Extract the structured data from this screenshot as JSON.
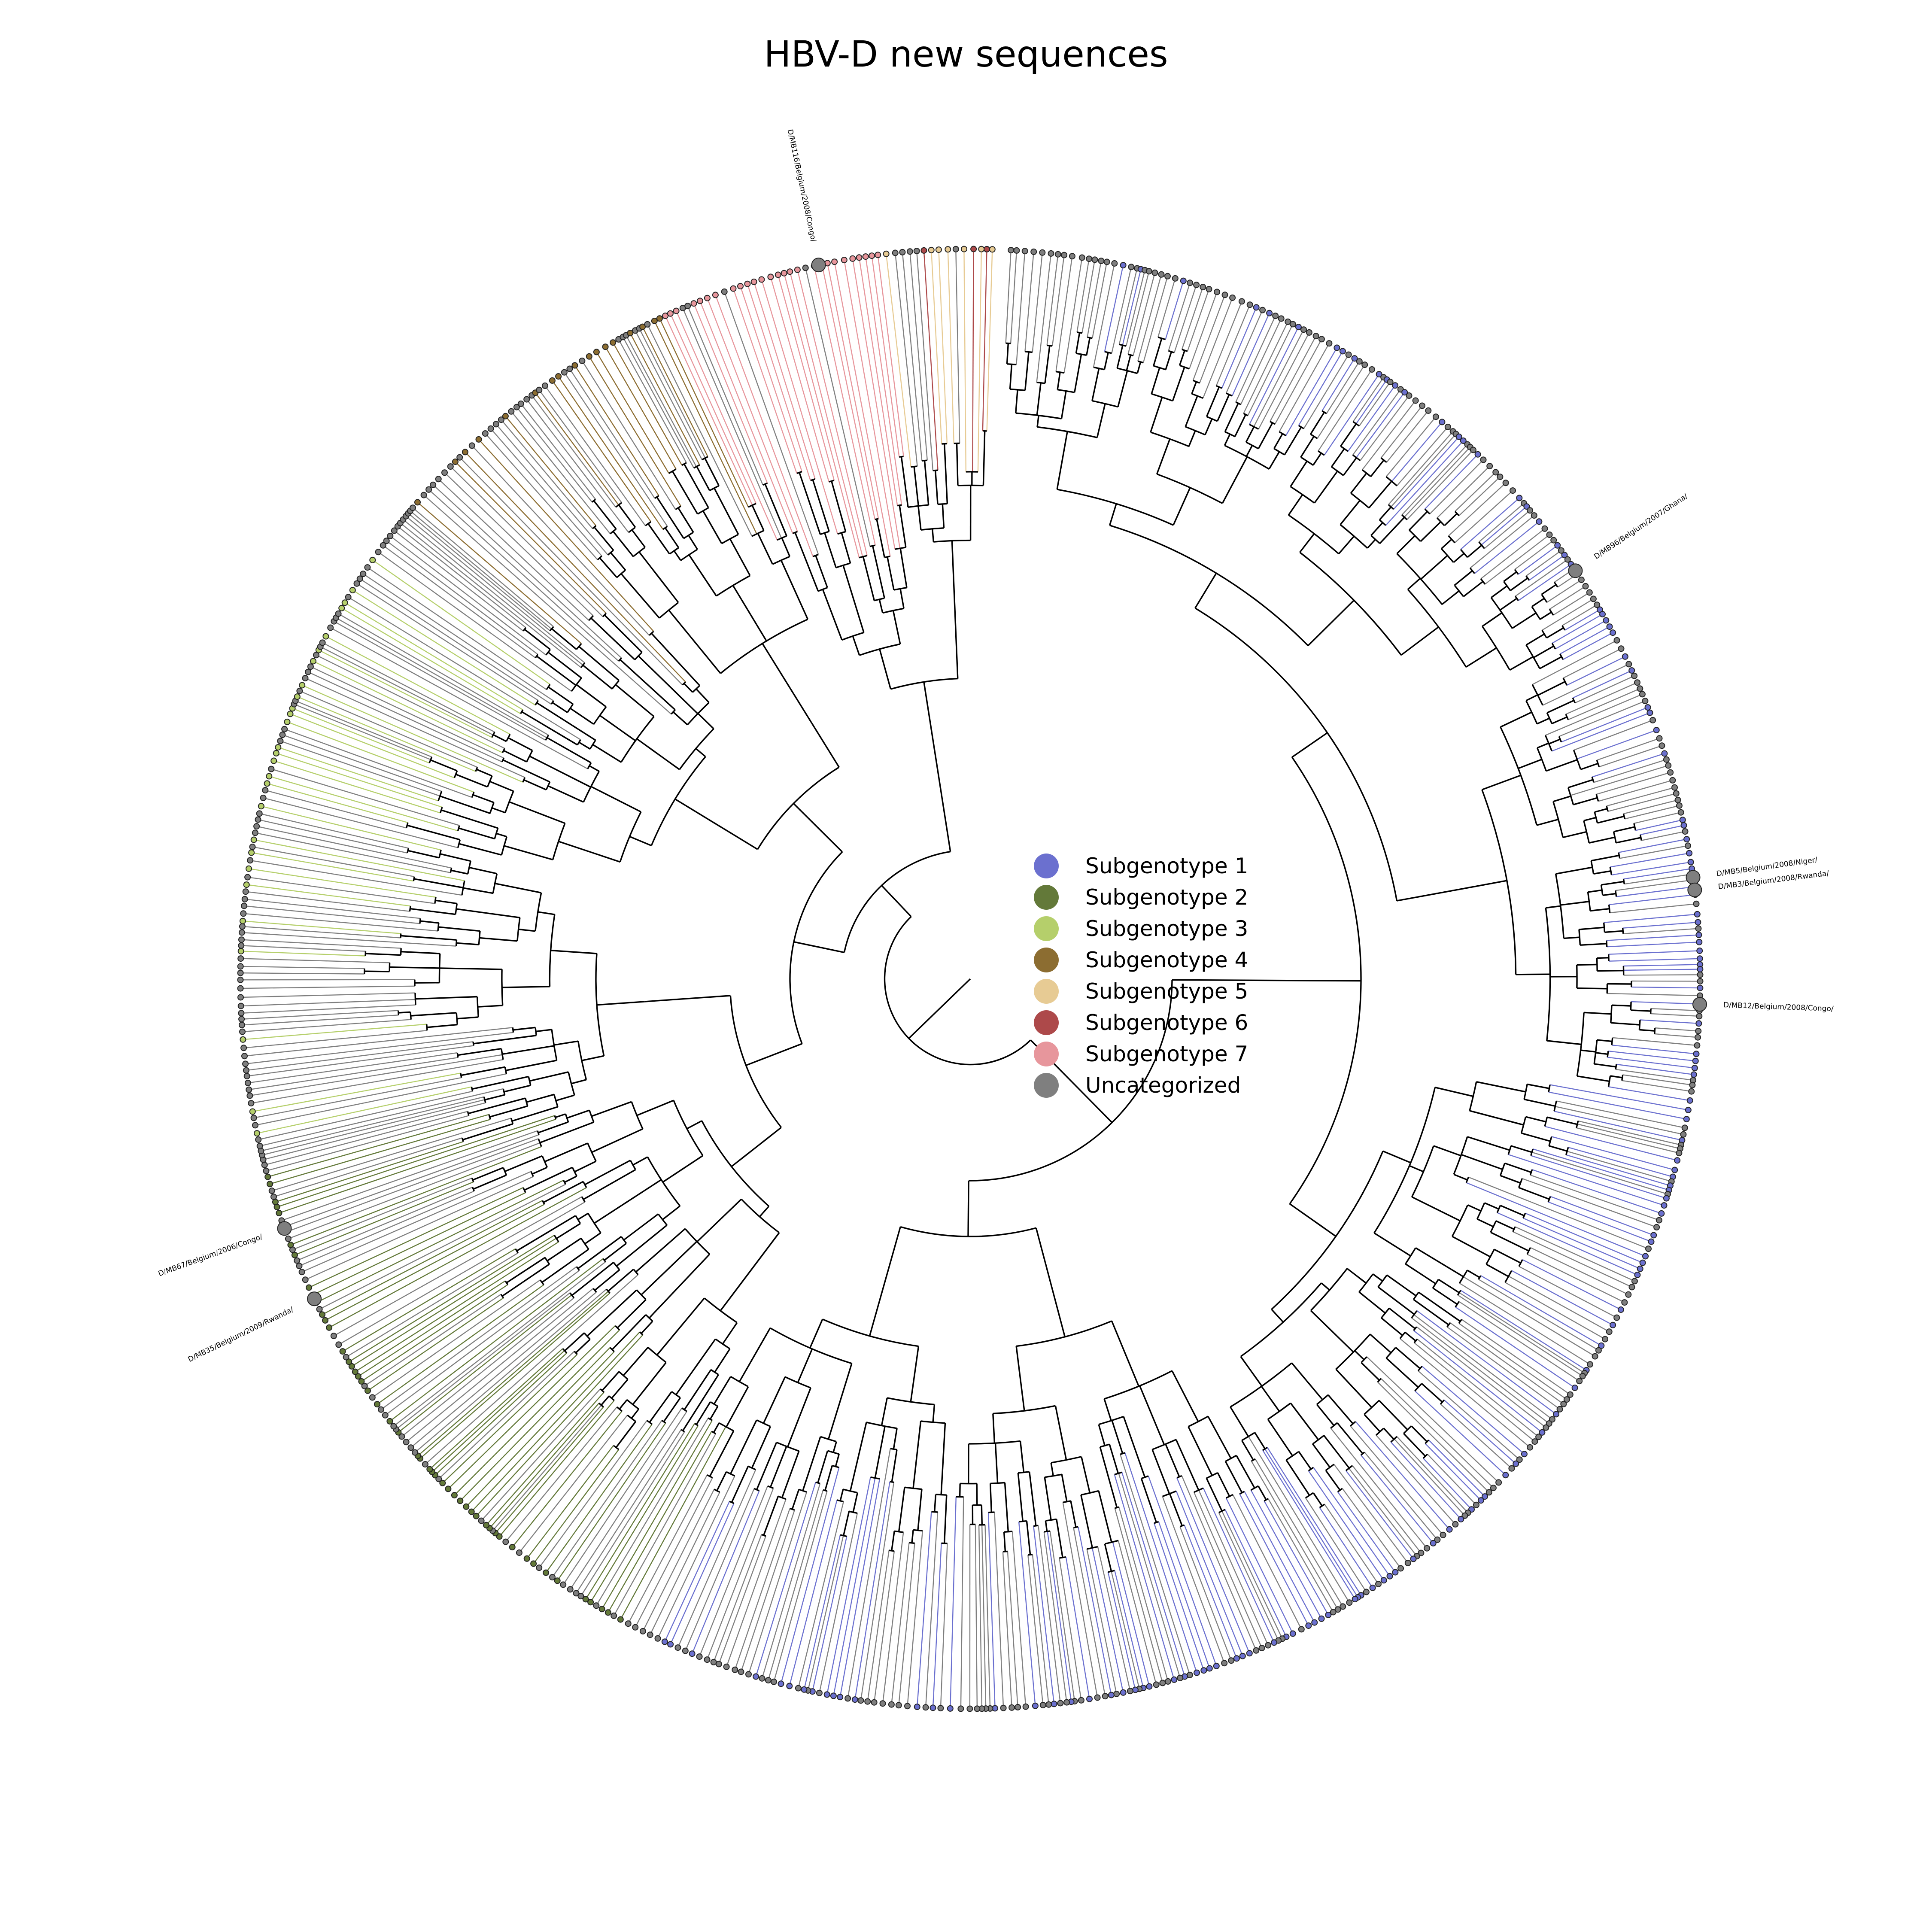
{
  "title": "HBV-D new sequences",
  "colors": {
    "subgenotype_1": "#6b70cf",
    "subgenotype_2": "#637939",
    "subgenotype_3": "#b5cf6b",
    "subgenotype_4": "#8c6d31",
    "subgenotype_5": "#e7cb94",
    "subgenotype_6": "#ad494a",
    "subgenotype_7": "#e7969c",
    "uncategorized": "#7f7f7f",
    "internal_branch": "#000000"
  },
  "legend": [
    {
      "label": "Subgenotype 1",
      "color": "#6b70cf"
    },
    {
      "label": "Subgenotype 2",
      "color": "#637939"
    },
    {
      "label": "Subgenotype 3",
      "color": "#b5cf6b"
    },
    {
      "label": "Subgenotype 4",
      "color": "#8c6d31"
    },
    {
      "label": "Subgenotype 5",
      "color": "#e7cb94"
    },
    {
      "label": "Subgenotype 6",
      "color": "#ad494a"
    },
    {
      "label": "Subgenotype 7",
      "color": "#e7969c"
    },
    {
      "label": "Uncategorized",
      "color": "#7f7f7f"
    }
  ],
  "highlighted_tips": [
    {
      "label": "D/MB116/Belgium/2008/Congo/",
      "angle_deg": 258
    },
    {
      "label": "D/MB96/Belgium/2007/Ghana/",
      "angle_deg": 326
    },
    {
      "label": "D/MB5/Belgium/2008/Niger/",
      "angle_deg": 352
    },
    {
      "label": "D/MB3/Belgium/2008/Rwanda/",
      "angle_deg": 353
    },
    {
      "label": "D/MB12/Belgium/2008/Congo/",
      "angle_deg": 2
    },
    {
      "label": "D/MB67/Belgium/2006/Congo/",
      "angle_deg": 160
    },
    {
      "label": "D/MB35/Belgium/2009/Rwanda/",
      "angle_deg": 154
    }
  ]
}
